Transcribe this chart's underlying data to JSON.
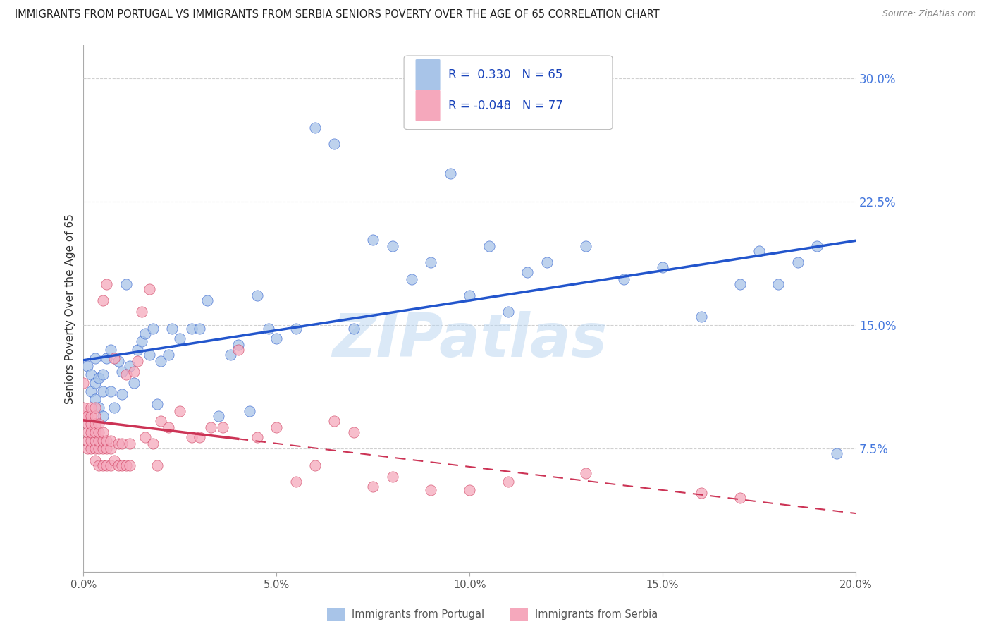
{
  "title": "IMMIGRANTS FROM PORTUGAL VS IMMIGRANTS FROM SERBIA SENIORS POVERTY OVER THE AGE OF 65 CORRELATION CHART",
  "source": "Source: ZipAtlas.com",
  "ylabel": "Seniors Poverty Over the Age of 65",
  "xlim": [
    0.0,
    0.2
  ],
  "ylim": [
    0.0,
    0.32
  ],
  "yticks": [
    0.075,
    0.15,
    0.225,
    0.3
  ],
  "ytick_labels": [
    "7.5%",
    "15.0%",
    "22.5%",
    "30.0%"
  ],
  "xticks": [
    0.0,
    0.05,
    0.1,
    0.15,
    0.2
  ],
  "xtick_labels": [
    "0.0%",
    "5.0%",
    "10.0%",
    "15.0%",
    "20.0%"
  ],
  "portugal_color": "#a8c4e8",
  "serbia_color": "#f5a8bc",
  "portugal_line_color": "#2255cc",
  "serbia_line_color": "#cc3355",
  "portugal_R": 0.33,
  "portugal_N": 65,
  "serbia_R": -0.048,
  "serbia_N": 77,
  "watermark": "ZIPatlas",
  "background_color": "#ffffff",
  "grid_color": "#d0d0d0",
  "portugal_x": [
    0.001,
    0.002,
    0.002,
    0.003,
    0.003,
    0.003,
    0.004,
    0.004,
    0.005,
    0.005,
    0.005,
    0.006,
    0.007,
    0.007,
    0.008,
    0.009,
    0.01,
    0.01,
    0.011,
    0.012,
    0.013,
    0.014,
    0.015,
    0.016,
    0.017,
    0.018,
    0.019,
    0.02,
    0.022,
    0.023,
    0.025,
    0.028,
    0.03,
    0.032,
    0.035,
    0.038,
    0.04,
    0.043,
    0.045,
    0.048,
    0.05,
    0.055,
    0.06,
    0.065,
    0.07,
    0.075,
    0.08,
    0.085,
    0.09,
    0.095,
    0.1,
    0.105,
    0.11,
    0.115,
    0.12,
    0.13,
    0.14,
    0.15,
    0.16,
    0.17,
    0.175,
    0.18,
    0.185,
    0.19,
    0.195
  ],
  "portugal_y": [
    0.125,
    0.11,
    0.12,
    0.105,
    0.115,
    0.13,
    0.1,
    0.118,
    0.11,
    0.12,
    0.095,
    0.13,
    0.135,
    0.11,
    0.1,
    0.128,
    0.108,
    0.122,
    0.175,
    0.125,
    0.115,
    0.135,
    0.14,
    0.145,
    0.132,
    0.148,
    0.102,
    0.128,
    0.132,
    0.148,
    0.142,
    0.148,
    0.148,
    0.165,
    0.095,
    0.132,
    0.138,
    0.098,
    0.168,
    0.148,
    0.142,
    0.148,
    0.27,
    0.26,
    0.148,
    0.202,
    0.198,
    0.178,
    0.188,
    0.242,
    0.168,
    0.198,
    0.158,
    0.182,
    0.188,
    0.198,
    0.178,
    0.185,
    0.155,
    0.175,
    0.195,
    0.175,
    0.188,
    0.198,
    0.072
  ],
  "serbia_x": [
    0.0,
    0.0,
    0.0,
    0.001,
    0.001,
    0.001,
    0.001,
    0.001,
    0.002,
    0.002,
    0.002,
    0.002,
    0.002,
    0.002,
    0.003,
    0.003,
    0.003,
    0.003,
    0.003,
    0.003,
    0.003,
    0.004,
    0.004,
    0.004,
    0.004,
    0.004,
    0.005,
    0.005,
    0.005,
    0.005,
    0.005,
    0.006,
    0.006,
    0.006,
    0.006,
    0.007,
    0.007,
    0.007,
    0.008,
    0.008,
    0.009,
    0.009,
    0.01,
    0.01,
    0.011,
    0.011,
    0.012,
    0.012,
    0.013,
    0.014,
    0.015,
    0.016,
    0.017,
    0.018,
    0.019,
    0.02,
    0.022,
    0.025,
    0.028,
    0.03,
    0.033,
    0.036,
    0.04,
    0.045,
    0.05,
    0.055,
    0.06,
    0.065,
    0.07,
    0.075,
    0.08,
    0.09,
    0.1,
    0.11,
    0.13,
    0.16,
    0.17
  ],
  "serbia_y": [
    0.095,
    0.1,
    0.115,
    0.075,
    0.08,
    0.085,
    0.09,
    0.095,
    0.075,
    0.08,
    0.085,
    0.09,
    0.095,
    0.1,
    0.068,
    0.075,
    0.08,
    0.085,
    0.09,
    0.095,
    0.1,
    0.065,
    0.075,
    0.08,
    0.085,
    0.09,
    0.065,
    0.075,
    0.08,
    0.085,
    0.165,
    0.065,
    0.075,
    0.08,
    0.175,
    0.065,
    0.075,
    0.08,
    0.068,
    0.13,
    0.065,
    0.078,
    0.065,
    0.078,
    0.065,
    0.12,
    0.065,
    0.078,
    0.122,
    0.128,
    0.158,
    0.082,
    0.172,
    0.078,
    0.065,
    0.092,
    0.088,
    0.098,
    0.082,
    0.082,
    0.088,
    0.088,
    0.135,
    0.082,
    0.088,
    0.055,
    0.065,
    0.092,
    0.085,
    0.052,
    0.058,
    0.05,
    0.05,
    0.055,
    0.06,
    0.048,
    0.045
  ]
}
